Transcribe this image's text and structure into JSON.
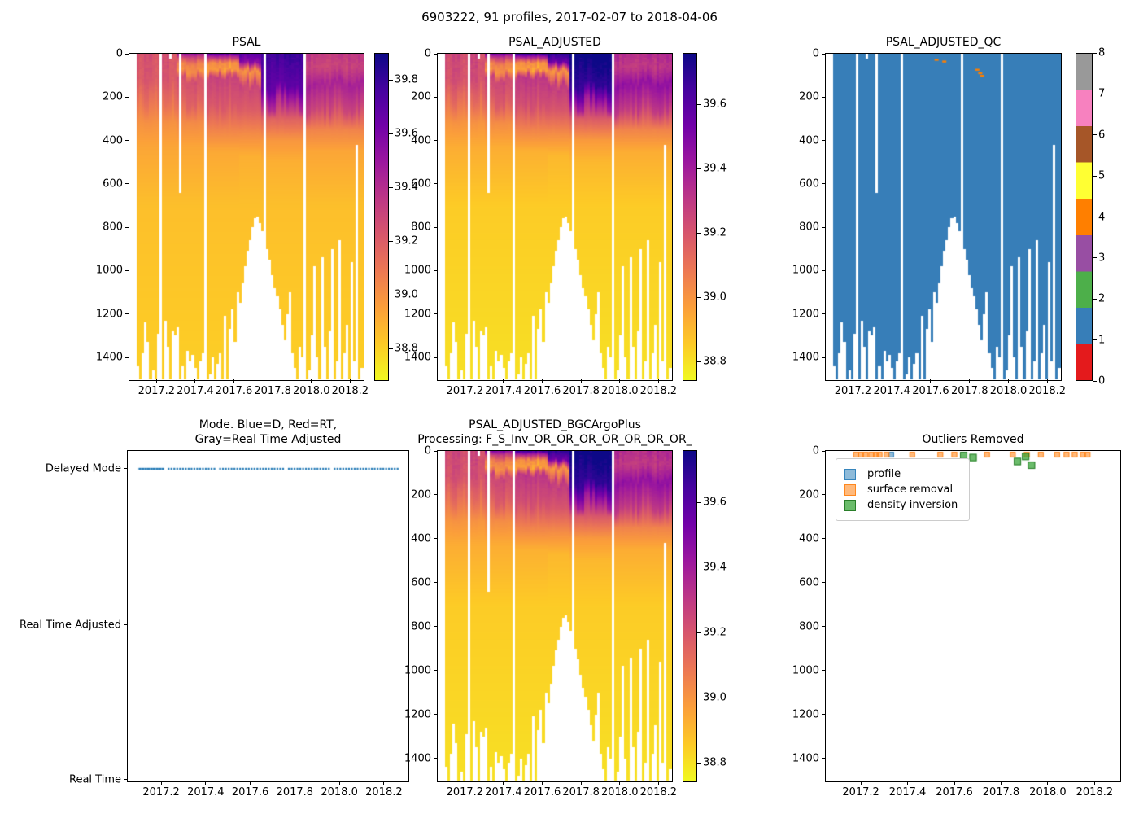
{
  "title": "6903222, 91 profiles, 2017-02-07 to 2018-04-06",
  "colors": {
    "plasma": [
      "#0d0887",
      "#46039f",
      "#7201a8",
      "#9c179e",
      "#bd3786",
      "#d8576b",
      "#ed7953",
      "#fb9f3a",
      "#fdca26",
      "#f0f921"
    ],
    "qc_palette": [
      "#e41a1c",
      "#377eb8",
      "#4daf4a",
      "#984ea3",
      "#ff7f00",
      "#ffff33",
      "#a65628",
      "#f781bf",
      "#999999"
    ],
    "mode_dot_blue": "#1f77b4",
    "qc_field_blue": "#377eb8",
    "qc_flag_orange": "#ff7f00"
  },
  "profiles": {
    "count": 91,
    "t_start": 2017.105,
    "t_step": 0.01285,
    "max_depths": [
      1440,
      1500,
      1380,
      1240,
      1330,
      1500,
      1460,
      1500,
      1290,
      0,
      1500,
      1230,
      1350,
      1500,
      1280,
      1300,
      1260,
      1500,
      1440,
      1500,
      1370,
      1420,
      1390,
      1450,
      1500,
      1420,
      1380,
      0,
      1500,
      1480,
      1400,
      1500,
      1430,
      1380,
      1500,
      1210,
      1500,
      1270,
      1180,
      1330,
      1100,
      1150,
      1060,
      980,
      910,
      860,
      800,
      760,
      750,
      780,
      820,
      0,
      900,
      950,
      1020,
      1080,
      1120,
      1180,
      1250,
      1320,
      1200,
      1100,
      1380,
      1450,
      1500,
      1350,
      1400,
      0,
      1500,
      1460,
      1300,
      980,
      1400,
      1500,
      940,
      1350,
      1500,
      1280,
      900,
      1500,
      1420,
      860,
      1500,
      1380,
      1250,
      1500,
      960,
      1420,
      420,
      1500,
      1450
    ],
    "gap_indices": [
      9,
      27,
      51,
      67
    ],
    "partial_white": [
      {
        "index": 13,
        "above": 22
      },
      {
        "index": 17,
        "above": 640
      }
    ]
  },
  "chart_data": [
    {
      "id": "psal",
      "type": "heatmap",
      "title": "PSAL",
      "xlim": [
        2017.06,
        2018.27
      ],
      "ylim": [
        0,
        1505
      ],
      "x_tick_values": [
        2017.2,
        2017.4,
        2017.6,
        2017.8,
        2018.0,
        2018.2
      ],
      "x_tick_labels": [
        "2017.2",
        "2017.4",
        "2017.6",
        "2017.8",
        "2018.0",
        "2018.2"
      ],
      "y_tick_values": [
        0,
        200,
        400,
        600,
        800,
        1000,
        1200,
        1400
      ],
      "y_tick_labels": [
        "0",
        "200",
        "400",
        "600",
        "800",
        "1000",
        "1200",
        "1400"
      ],
      "colorbar": {
        "kind": "continuous",
        "vmin": 38.68,
        "vmax": 39.9,
        "tick_values": [
          39.8,
          39.6,
          39.4,
          39.2,
          39.0,
          38.8
        ],
        "tick_labels": [
          "39.8",
          "39.6",
          "39.4",
          "39.2",
          "39.0",
          "38.8"
        ]
      },
      "salinity_eras": [
        {
          "t1": 2017.3,
          "stops": [
            [
              0,
              39.24
            ],
            [
              120,
              39.22
            ],
            [
              220,
              39.12
            ],
            [
              320,
              39.0
            ],
            [
              430,
              38.93
            ],
            [
              700,
              38.85
            ],
            [
              1505,
              38.8
            ]
          ]
        },
        {
          "t1": 2017.45,
          "stops": [
            [
              0,
              39.5
            ],
            [
              15,
              39.3
            ],
            [
              50,
              39.05
            ],
            [
              80,
              39.0
            ],
            [
              120,
              39.25
            ],
            [
              220,
              39.18
            ],
            [
              320,
              39.02
            ],
            [
              430,
              38.93
            ],
            [
              700,
              38.85
            ],
            [
              1505,
              38.8
            ]
          ]
        },
        {
          "t1": 2017.62,
          "stops": [
            [
              0,
              39.65
            ],
            [
              15,
              39.4
            ],
            [
              45,
              39.0
            ],
            [
              75,
              38.96
            ],
            [
              110,
              39.3
            ],
            [
              240,
              39.22
            ],
            [
              350,
              39.05
            ],
            [
              450,
              38.92
            ],
            [
              700,
              38.85
            ],
            [
              1505,
              38.8
            ]
          ]
        },
        {
          "t1": 2017.74,
          "stops": [
            [
              0,
              39.7
            ],
            [
              40,
              39.55
            ],
            [
              80,
              39.0
            ],
            [
              110,
              39.1
            ],
            [
              150,
              39.3
            ],
            [
              260,
              39.2
            ],
            [
              370,
              39.02
            ],
            [
              470,
              38.9
            ],
            [
              700,
              38.85
            ],
            [
              1505,
              38.8
            ]
          ]
        },
        {
          "t1": 2017.97,
          "stops": [
            [
              0,
              39.78
            ],
            [
              150,
              39.68
            ],
            [
              230,
              39.4
            ],
            [
              300,
              39.18
            ],
            [
              400,
              38.98
            ],
            [
              500,
              38.9
            ],
            [
              700,
              38.85
            ],
            [
              1505,
              38.8
            ]
          ]
        },
        {
          "t1": 2099.0,
          "stops": [
            [
              0,
              39.35
            ],
            [
              60,
              39.3
            ],
            [
              140,
              39.45
            ],
            [
              250,
              39.3
            ],
            [
              350,
              39.05
            ],
            [
              450,
              38.93
            ],
            [
              700,
              38.85
            ],
            [
              1505,
              38.8
            ]
          ]
        }
      ]
    },
    {
      "id": "psal_adjusted",
      "type": "heatmap",
      "title": "PSAL_ADJUSTED",
      "xlim": [
        2017.06,
        2018.27
      ],
      "ylim": [
        0,
        1505
      ],
      "x_tick_values": [
        2017.2,
        2017.4,
        2017.6,
        2017.8,
        2018.0,
        2018.2
      ],
      "x_tick_labels": [
        "2017.2",
        "2017.4",
        "2017.6",
        "2017.8",
        "2018.0",
        "2018.2"
      ],
      "y_tick_values": [
        0,
        200,
        400,
        600,
        800,
        1000,
        1200,
        1400
      ],
      "y_tick_labels": [
        "0",
        "200",
        "400",
        "600",
        "800",
        "1000",
        "1200",
        "1400"
      ],
      "colorbar": {
        "kind": "continuous",
        "vmin": 38.74,
        "vmax": 39.76,
        "tick_values": [
          39.6,
          39.4,
          39.2,
          39.0,
          38.8
        ],
        "tick_labels": [
          "39.6",
          "39.4",
          "39.2",
          "39.0",
          "38.8"
        ]
      }
    },
    {
      "id": "psal_adjusted_qc",
      "type": "heatmap_qc",
      "title": "PSAL_ADJUSTED_QC",
      "xlim": [
        2017.06,
        2018.27
      ],
      "ylim": [
        0,
        1505
      ],
      "x_tick_values": [
        2017.2,
        2017.4,
        2017.6,
        2017.8,
        2018.0,
        2018.2
      ],
      "x_tick_labels": [
        "2017.2",
        "2017.4",
        "2017.6",
        "2017.8",
        "2018.0",
        "2018.2"
      ],
      "y_tick_values": [
        0,
        200,
        400,
        600,
        800,
        1000,
        1200,
        1400
      ],
      "y_tick_labels": [
        "0",
        "200",
        "400",
        "600",
        "800",
        "1000",
        "1200",
        "1400"
      ],
      "field_value": 1,
      "flags": {
        "value": 4,
        "points": [
          [
            2017.63,
            28
          ],
          [
            2017.67,
            36
          ],
          [
            2017.84,
            74
          ],
          [
            2017.855,
            90
          ],
          [
            2017.865,
            102
          ]
        ]
      },
      "colorbar": {
        "kind": "discrete",
        "tick_values": [
          0,
          1,
          2,
          3,
          4,
          5,
          6,
          7,
          8
        ],
        "tick_labels": [
          "0",
          "1",
          "2",
          "3",
          "4",
          "5",
          "6",
          "7",
          "8"
        ]
      }
    },
    {
      "id": "mode",
      "type": "mode_scatter",
      "title": "Mode. Blue=D, Red=RT,\nGray=Real Time Adjusted",
      "xlim": [
        2017.05,
        2018.31
      ],
      "x_tick_values": [
        2017.2,
        2017.4,
        2017.6,
        2017.8,
        2018.0,
        2018.2
      ],
      "x_tick_labels": [
        "2017.2",
        "2017.4",
        "2017.6",
        "2017.8",
        "2018.0",
        "2018.2"
      ],
      "y_categories": [
        {
          "label": "Delayed Mode",
          "f": 0.054
        },
        {
          "label": "Real Time Adjusted",
          "f": 0.527
        },
        {
          "label": "Real Time",
          "f": 0.995
        }
      ],
      "mode_value": "Delayed Mode"
    },
    {
      "id": "psal_adjusted_bgc",
      "type": "heatmap",
      "title": "PSAL_ADJUSTED_BGCArgoPlus\nProcessing: F_S_Inv_OR_OR_OR_OR_OR_OR_OR_",
      "xlim": [
        2017.06,
        2018.27
      ],
      "ylim": [
        0,
        1505
      ],
      "x_tick_values": [
        2017.2,
        2017.4,
        2017.6,
        2017.8,
        2018.0,
        2018.2
      ],
      "x_tick_labels": [
        "2017.2",
        "2017.4",
        "2017.6",
        "2017.8",
        "2018.0",
        "2018.2"
      ],
      "y_tick_values": [
        0,
        200,
        400,
        600,
        800,
        1000,
        1200,
        1400
      ],
      "y_tick_labels": [
        "0",
        "200",
        "400",
        "600",
        "800",
        "1000",
        "1200",
        "1400"
      ],
      "colorbar": {
        "kind": "continuous",
        "vmin": 38.74,
        "vmax": 39.76,
        "tick_values": [
          39.6,
          39.4,
          39.2,
          39.0,
          38.8
        ],
        "tick_labels": [
          "39.6",
          "39.4",
          "39.2",
          "39.0",
          "38.8"
        ]
      }
    },
    {
      "id": "outliers",
      "type": "outlier_scatter",
      "title": "Outliers Removed",
      "xlim": [
        2017.05,
        2018.31
      ],
      "ylim": [
        0,
        1505
      ],
      "x_tick_values": [
        2017.2,
        2017.4,
        2017.6,
        2017.8,
        2018.0,
        2018.2
      ],
      "x_tick_labels": [
        "2017.2",
        "2017.4",
        "2017.6",
        "2017.8",
        "2018.0",
        "2018.2"
      ],
      "y_tick_values": [
        0,
        200,
        400,
        600,
        800,
        1000,
        1200,
        1400
      ],
      "y_tick_labels": [
        "0",
        "200",
        "400",
        "600",
        "800",
        "1000",
        "1200",
        "1400"
      ],
      "legend_labels": [
        "profile",
        "surface removal",
        "density inversion"
      ],
      "series": [
        {
          "name": "profile",
          "fill": "rgba(31,119,180,0.5)",
          "edge": "rgba(31,119,180,0.8)",
          "size": 7,
          "points": [
            [
              2017.33,
              8
            ]
          ]
        },
        {
          "name": "surface removal",
          "fill": "rgba(255,127,14,0.55)",
          "edge": "rgba(255,127,14,0.85)",
          "size": 7,
          "points": [
            [
              2017.18,
              5
            ],
            [
              2017.2,
              5
            ],
            [
              2017.22,
              5
            ],
            [
              2017.245,
              5
            ],
            [
              2017.265,
              5
            ],
            [
              2017.28,
              5
            ],
            [
              2017.31,
              5
            ],
            [
              2017.42,
              5
            ],
            [
              2017.54,
              5
            ],
            [
              2017.6,
              5
            ],
            [
              2017.74,
              5
            ],
            [
              2017.85,
              5
            ],
            [
              2017.91,
              5
            ],
            [
              2017.97,
              5
            ],
            [
              2018.04,
              5
            ],
            [
              2018.08,
              5
            ],
            [
              2018.115,
              5
            ],
            [
              2018.15,
              5
            ],
            [
              2018.17,
              5
            ]
          ]
        },
        {
          "name": "density inversion",
          "fill": "rgba(44,160,44,0.7)",
          "edge": "rgba(34,120,34,0.9)",
          "size": 9,
          "points": [
            [
              2017.64,
              20
            ],
            [
              2017.68,
              30
            ],
            [
              2017.87,
              48
            ],
            [
              2017.905,
              25
            ],
            [
              2017.93,
              65
            ]
          ]
        }
      ]
    }
  ]
}
